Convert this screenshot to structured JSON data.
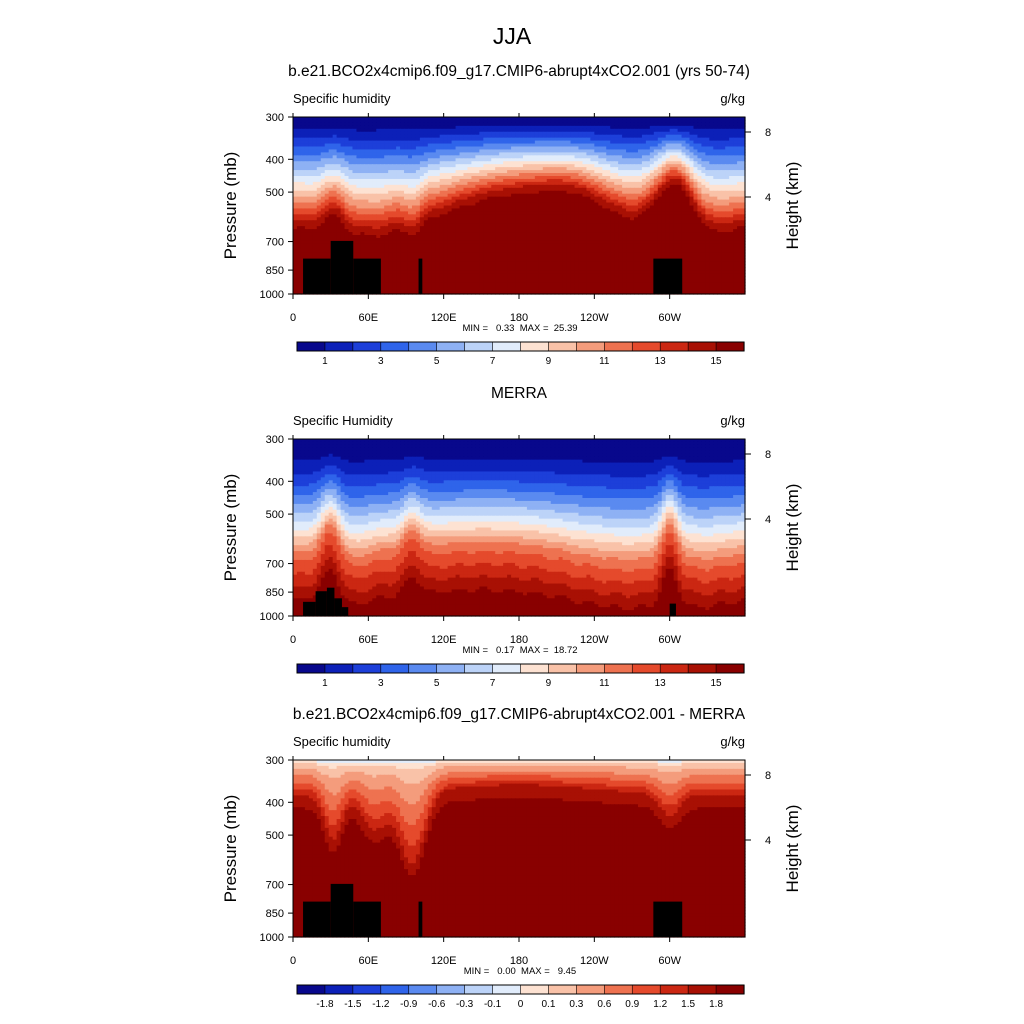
{
  "main_title": "JJA",
  "chart_data": [
    {
      "type": "heatmap",
      "title": "b.e21.BCO2x4cmip6.f09_g17.CMIP6-abrupt4xCO2.001 (yrs 50-74)",
      "left_string": "Specific humidity",
      "right_string": "g/kg",
      "xlabel": "",
      "ylabel": "Pressure (mb)",
      "ylabel_right": "Height (km)",
      "x_ticks": [
        "0",
        "60E",
        "120E",
        "180",
        "120W",
        "60W"
      ],
      "y_ticks": [
        "300",
        "400",
        "500",
        "700",
        "850",
        "1000"
      ],
      "y_right_ticks": [
        "8",
        "4"
      ],
      "stats": "MIN =   0.33  MAX =  25.39",
      "min": 0.33,
      "max": 25.39,
      "colorbar_labels": [
        "1",
        "3",
        "5",
        "7",
        "9",
        "11",
        "13",
        "15"
      ],
      "colorbar_levels": [
        1,
        2,
        3,
        4,
        5,
        6,
        7,
        8,
        9,
        10,
        11,
        12,
        13,
        14,
        15
      ],
      "field": "model"
    },
    {
      "type": "heatmap",
      "title": "MERRA",
      "left_string": "Specific Humidity",
      "right_string": "g/kg",
      "xlabel": "",
      "ylabel": "Pressure (mb)",
      "ylabel_right": "Height (km)",
      "x_ticks": [
        "0",
        "60E",
        "120E",
        "180",
        "120W",
        "60W"
      ],
      "y_ticks": [
        "300",
        "400",
        "500",
        "700",
        "850",
        "1000"
      ],
      "y_right_ticks": [
        "8",
        "4"
      ],
      "stats": "MIN =   0.17  MAX =  18.72",
      "min": 0.17,
      "max": 18.72,
      "colorbar_labels": [
        "1",
        "3",
        "5",
        "7",
        "9",
        "11",
        "13",
        "15"
      ],
      "colorbar_levels": [
        1,
        2,
        3,
        4,
        5,
        6,
        7,
        8,
        9,
        10,
        11,
        12,
        13,
        14,
        15
      ],
      "field": "obs"
    },
    {
      "type": "heatmap",
      "title": "b.e21.BCO2x4cmip6.f09_g17.CMIP6-abrupt4xCO2.001 - MERRA",
      "left_string": "Specific humidity",
      "right_string": "g/kg",
      "xlabel": "",
      "ylabel": "Pressure (mb)",
      "ylabel_right": "Height (km)",
      "x_ticks": [
        "0",
        "60E",
        "120E",
        "180",
        "120W",
        "60W"
      ],
      "y_ticks": [
        "300",
        "400",
        "500",
        "700",
        "850",
        "1000"
      ],
      "y_right_ticks": [
        "8",
        "4"
      ],
      "stats": "MIN =   0.00  MAX =   9.45",
      "min": 0.0,
      "max": 9.45,
      "colorbar_labels": [
        "-1.8",
        "-1.5",
        "-1.2",
        "-0.9",
        "-0.6",
        "-0.3",
        "-0.1",
        "0",
        "0.1",
        "0.3",
        "0.6",
        "0.9",
        "1.2",
        "1.5",
        "1.8"
      ],
      "colorbar_levels": [
        -1.8,
        -1.5,
        -1.2,
        -0.9,
        -0.6,
        -0.3,
        -0.1,
        0,
        0.1,
        0.3,
        0.6,
        0.9,
        1.2,
        1.5,
        1.8
      ],
      "field": "diff"
    }
  ],
  "palette": [
    "#08088c",
    "#0c20b8",
    "#1d3fd9",
    "#2f64ea",
    "#5a8af0",
    "#8eb1f4",
    "#bcd3f8",
    "#e1ecfb",
    "#fde2d2",
    "#f9c2a8",
    "#f49c7c",
    "#ee7250",
    "#e54a2c",
    "#cb2712",
    "#a81004",
    "#890000"
  ],
  "masked_color": "#000000"
}
